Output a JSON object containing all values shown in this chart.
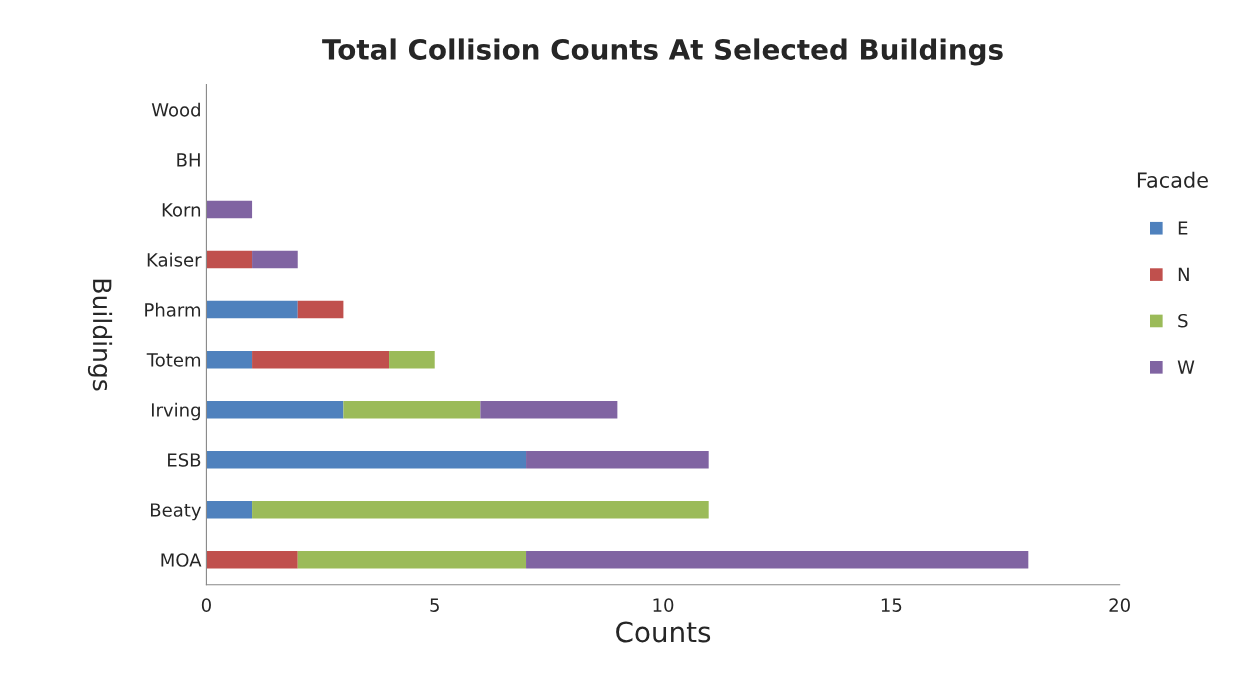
{
  "chart_data": {
    "type": "bar",
    "orientation": "horizontal",
    "stacked": true,
    "title": "Total Collision Counts At Selected Buildings",
    "xlabel": "Counts",
    "ylabel": "Buildings",
    "legend_title": "Facade",
    "legend": "right",
    "grid": false,
    "categories": [
      "Wood",
      "BH",
      "Korn",
      "Kaiser",
      "Pharm",
      "Totem",
      "Irving",
      "ESB",
      "Beaty",
      "MOA"
    ],
    "series": [
      {
        "name": "E",
        "color": "#4f81bd",
        "values": [
          0,
          0,
          0,
          0,
          2,
          1,
          3,
          7,
          1,
          0
        ]
      },
      {
        "name": "N",
        "color": "#c0504d",
        "values": [
          0,
          0,
          0,
          1,
          1,
          3,
          0,
          0,
          0,
          2
        ]
      },
      {
        "name": "S",
        "color": "#9bbb59",
        "values": [
          0,
          0,
          0,
          0,
          0,
          1,
          3,
          0,
          10,
          5
        ]
      },
      {
        "name": "W",
        "color": "#8064a2",
        "values": [
          0,
          0,
          1,
          1,
          0,
          0,
          3,
          4,
          0,
          11
        ]
      }
    ],
    "xlim": [
      0,
      20
    ],
    "xticks": [
      0,
      5,
      10,
      15,
      20
    ]
  }
}
